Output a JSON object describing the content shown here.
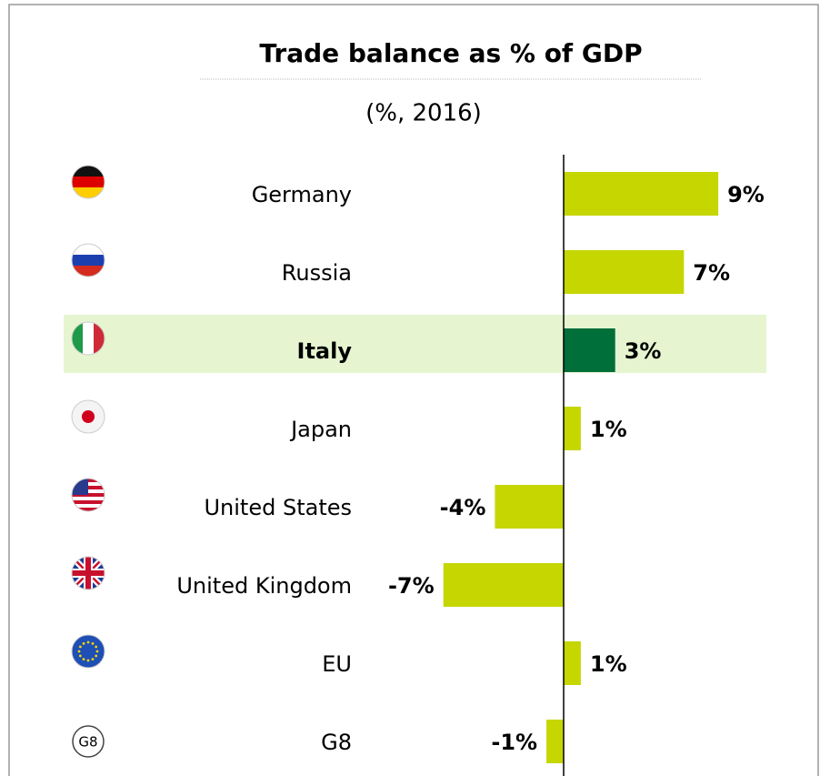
{
  "chart_data": {
    "type": "bar",
    "orientation": "horizontal",
    "title": "Trade balance as % of GDP",
    "subtitle": "(%, 2016)",
    "categories": [
      "Germany",
      "Russia",
      "Italy",
      "Japan",
      "United States",
      "United Kingdom",
      "EU",
      "G8"
    ],
    "values": [
      9,
      7,
      3,
      1,
      -4,
      -7,
      1,
      -1
    ],
    "value_labels": [
      "9%",
      "7%",
      "3%",
      "1%",
      "-4%",
      "-7%",
      "1%",
      "-1%"
    ],
    "colors": [
      "#c5d600",
      "#c5d600",
      "#006f3a",
      "#c5d600",
      "#c5d600",
      "#c5d600",
      "#c5d600",
      "#c5d600"
    ],
    "highlight": "Italy"
  }
}
